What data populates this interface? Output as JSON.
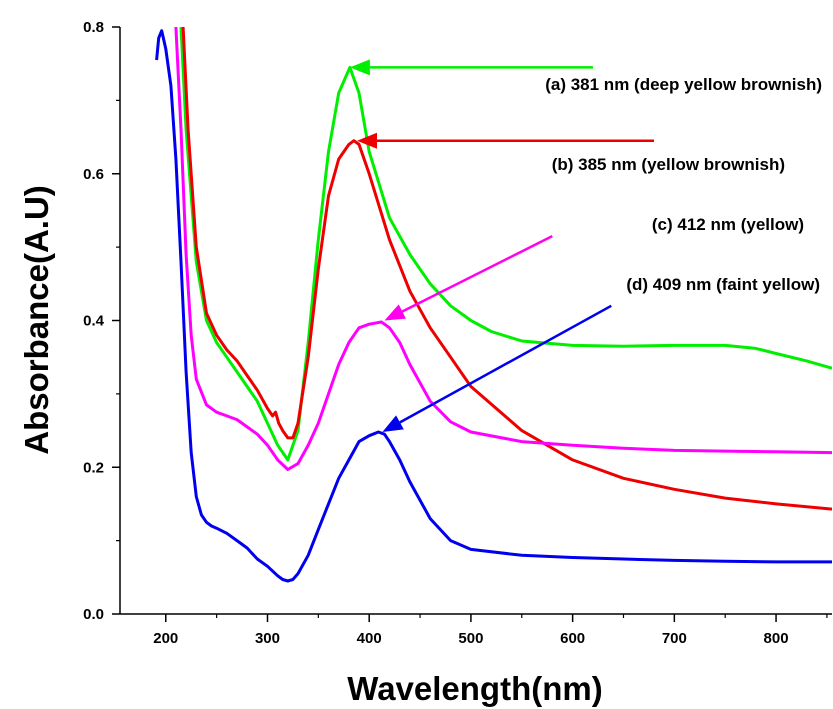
{
  "chart_data": {
    "type": "line",
    "xlabel": "Wavelength(nm)",
    "ylabel": "Absorbance(A.U)",
    "xlim": [
      155,
      855
    ],
    "ylim": [
      0.0,
      0.8
    ],
    "xticks": [
      200,
      300,
      400,
      500,
      600,
      700,
      800
    ],
    "xtick_labels": [
      "200",
      "300",
      "400",
      "500",
      "600",
      "700",
      "800"
    ],
    "yticks": [
      0.0,
      0.2,
      0.4,
      0.6,
      0.8
    ],
    "ytick_labels": [
      "0.0",
      "0.2",
      "0.4",
      "0.6",
      "0.8"
    ],
    "grid": false,
    "legend": "none",
    "series": [
      {
        "color": "#00ee00",
        "x": [
          215,
          220,
          230,
          240,
          250,
          260,
          270,
          280,
          290,
          300,
          310,
          320,
          330,
          340,
          350,
          360,
          370,
          381,
          390,
          400,
          420,
          440,
          460,
          480,
          500,
          520,
          550,
          600,
          650,
          700,
          750,
          780,
          800,
          830,
          855
        ],
        "y": [
          0.8,
          0.66,
          0.48,
          0.4,
          0.37,
          0.35,
          0.33,
          0.31,
          0.29,
          0.26,
          0.23,
          0.21,
          0.25,
          0.37,
          0.51,
          0.63,
          0.71,
          0.745,
          0.71,
          0.63,
          0.54,
          0.49,
          0.45,
          0.42,
          0.4,
          0.385,
          0.372,
          0.366,
          0.365,
          0.366,
          0.366,
          0.362,
          0.355,
          0.345,
          0.335
        ]
      },
      {
        "color": "#ee0000",
        "x": [
          217,
          222,
          230,
          240,
          250,
          260,
          270,
          280,
          290,
          300,
          305,
          308,
          311,
          315,
          320,
          325,
          330,
          340,
          350,
          360,
          370,
          380,
          385,
          390,
          400,
          420,
          440,
          460,
          480,
          500,
          550,
          600,
          650,
          700,
          750,
          800,
          855
        ],
        "y": [
          0.8,
          0.66,
          0.5,
          0.41,
          0.38,
          0.36,
          0.345,
          0.325,
          0.305,
          0.28,
          0.27,
          0.275,
          0.26,
          0.25,
          0.24,
          0.24,
          0.26,
          0.35,
          0.47,
          0.57,
          0.62,
          0.64,
          0.645,
          0.64,
          0.6,
          0.51,
          0.44,
          0.39,
          0.35,
          0.31,
          0.25,
          0.21,
          0.185,
          0.17,
          0.158,
          0.15,
          0.143
        ]
      },
      {
        "color": "#ff00ff",
        "x": [
          210,
          215,
          220,
          225,
          230,
          240,
          250,
          260,
          270,
          280,
          290,
          300,
          310,
          320,
          330,
          340,
          350,
          360,
          370,
          380,
          390,
          400,
          412,
          420,
          430,
          440,
          460,
          480,
          500,
          550,
          600,
          650,
          700,
          750,
          800,
          855
        ],
        "y": [
          0.8,
          0.66,
          0.49,
          0.38,
          0.32,
          0.285,
          0.275,
          0.27,
          0.265,
          0.255,
          0.245,
          0.23,
          0.21,
          0.197,
          0.205,
          0.23,
          0.26,
          0.3,
          0.34,
          0.37,
          0.39,
          0.395,
          0.398,
          0.39,
          0.37,
          0.34,
          0.29,
          0.262,
          0.248,
          0.235,
          0.23,
          0.226,
          0.223,
          0.222,
          0.221,
          0.22
        ]
      },
      {
        "color": "#0000ee",
        "x": [
          191,
          193,
          196,
          200,
          205,
          210,
          215,
          220,
          225,
          230,
          235,
          240,
          245,
          250,
          260,
          270,
          280,
          290,
          300,
          310,
          315,
          320,
          325,
          330,
          340,
          350,
          360,
          370,
          380,
          390,
          400,
          409,
          415,
          420,
          430,
          440,
          460,
          480,
          500,
          550,
          600,
          650,
          700,
          750,
          800,
          855
        ],
        "y": [
          0.755,
          0.785,
          0.795,
          0.77,
          0.72,
          0.62,
          0.48,
          0.33,
          0.22,
          0.16,
          0.135,
          0.125,
          0.12,
          0.117,
          0.11,
          0.1,
          0.09,
          0.075,
          0.065,
          0.052,
          0.047,
          0.045,
          0.047,
          0.055,
          0.08,
          0.115,
          0.15,
          0.185,
          0.21,
          0.235,
          0.243,
          0.248,
          0.245,
          0.235,
          0.21,
          0.18,
          0.13,
          0.1,
          0.088,
          0.08,
          0.077,
          0.075,
          0.073,
          0.072,
          0.071,
          0.071
        ]
      }
    ],
    "annotations": [
      {
        "text": "(a) 381 nm (deep yellow brownish)",
        "color": "#00ee00",
        "point_x": 381,
        "point_y": 0.745,
        "arrow_from_x": 620,
        "arrow_from_y": 0.745
      },
      {
        "text": "(b) 385 nm (yellow brownish)",
        "color": "#ee0000",
        "point_x": 388,
        "point_y": 0.645,
        "arrow_from_x": 680,
        "arrow_from_y": 0.645
      },
      {
        "text": "(c) 412 nm (yellow)",
        "color": "#ff00ee",
        "point_x": 415,
        "point_y": 0.4,
        "arrow_from_x": 580,
        "arrow_from_y": 0.515
      },
      {
        "text": "(d) 409 nm (faint yellow)",
        "color": "#0000ee",
        "point_x": 413,
        "point_y": 0.248,
        "arrow_from_x": 638,
        "arrow_from_y": 0.42
      }
    ]
  }
}
